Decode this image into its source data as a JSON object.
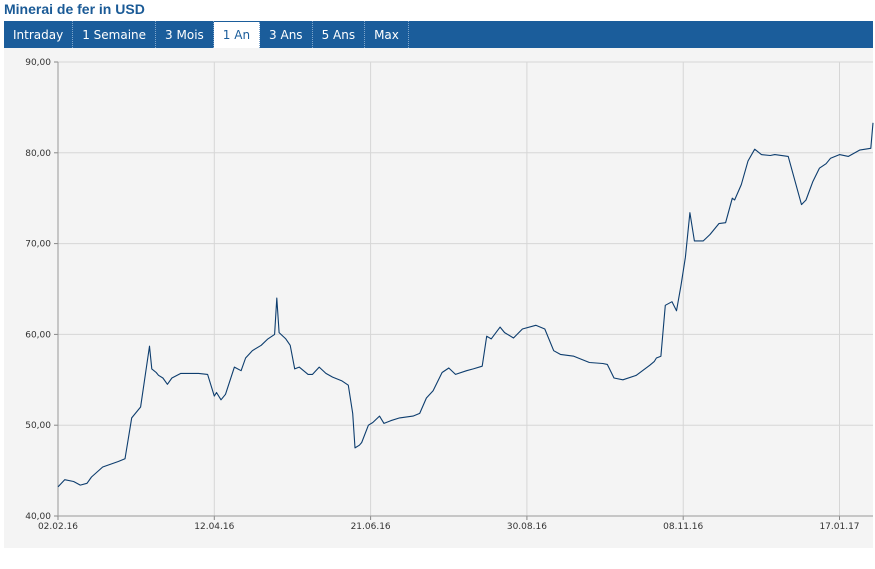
{
  "header": {
    "title": "Minerai de fer in USD"
  },
  "tabs": [
    {
      "label": "Intraday",
      "active": false
    },
    {
      "label": "1 Semaine",
      "active": false
    },
    {
      "label": "3 Mois",
      "active": false
    },
    {
      "label": "1 An",
      "active": true
    },
    {
      "label": "3 Ans",
      "active": false
    },
    {
      "label": "5 Ans",
      "active": false
    },
    {
      "label": "Max",
      "active": false
    }
  ],
  "colors": {
    "line": "#0d3d6e",
    "tabbar": "#1b5d9b",
    "title": "#1a5a96",
    "plot_bg": "#f4f4f4"
  },
  "chart_data": {
    "type": "line",
    "title": "Minerai de fer in USD",
    "xlabel": "",
    "ylabel": "",
    "ylim": [
      40,
      90
    ],
    "y_ticks": [
      40,
      50,
      60,
      70,
      80,
      90
    ],
    "y_tick_labels": [
      "40,00",
      "50,00",
      "60,00",
      "70,00",
      "80,00",
      "90,00"
    ],
    "xlim": [
      "2016-02-02",
      "2017-02-01"
    ],
    "x_ticks": [
      "2016-02-02",
      "2016-04-12",
      "2016-06-21",
      "2016-08-30",
      "2016-11-08",
      "2017-01-17"
    ],
    "x_tick_labels": [
      "02.02.16",
      "12.04.16",
      "21.06.16",
      "30.08.16",
      "08.11.16",
      "17.01.17"
    ],
    "grid": true,
    "series": [
      {
        "x": [
          "2016-02-02",
          "2016-02-05",
          "2016-02-09",
          "2016-02-12",
          "2016-02-15",
          "2016-02-17",
          "2016-02-22",
          "2016-02-29",
          "2016-03-03",
          "2016-03-06",
          "2016-03-10",
          "2016-03-14",
          "2016-03-15",
          "2016-03-17",
          "2016-03-18",
          "2016-03-20",
          "2016-03-22",
          "2016-03-24",
          "2016-03-28",
          "2016-04-01",
          "2016-04-05",
          "2016-04-09",
          "2016-04-12",
          "2016-04-13",
          "2016-04-15",
          "2016-04-17",
          "2016-04-21",
          "2016-04-24",
          "2016-04-26",
          "2016-04-29",
          "2016-05-03",
          "2016-05-06",
          "2016-05-09",
          "2016-05-10",
          "2016-05-11",
          "2016-05-14",
          "2016-05-16",
          "2016-05-18",
          "2016-05-20",
          "2016-05-24",
          "2016-05-26",
          "2016-05-29",
          "2016-06-01",
          "2016-06-04",
          "2016-06-08",
          "2016-06-11",
          "2016-06-13",
          "2016-06-14",
          "2016-06-16",
          "2016-06-17",
          "2016-06-20",
          "2016-06-22",
          "2016-06-25",
          "2016-06-27",
          "2016-06-30",
          "2016-07-04",
          "2016-07-10",
          "2016-07-13",
          "2016-07-16",
          "2016-07-19",
          "2016-07-23",
          "2016-07-26",
          "2016-07-29",
          "2016-08-03",
          "2016-08-06",
          "2016-08-10",
          "2016-08-12",
          "2016-08-14",
          "2016-08-18",
          "2016-08-20",
          "2016-08-24",
          "2016-08-28",
          "2016-09-03",
          "2016-09-05",
          "2016-09-07",
          "2016-09-11",
          "2016-09-14",
          "2016-09-20",
          "2016-09-27",
          "2016-10-03",
          "2016-10-05",
          "2016-10-08",
          "2016-10-12",
          "2016-10-18",
          "2016-10-24",
          "2016-10-26",
          "2016-10-27",
          "2016-10-29",
          "2016-10-31",
          "2016-11-03",
          "2016-11-05",
          "2016-11-07",
          "2016-11-09",
          "2016-11-11",
          "2016-11-13",
          "2016-11-17",
          "2016-11-20",
          "2016-11-24",
          "2016-11-27",
          "2016-11-30",
          "2016-12-01",
          "2016-12-04",
          "2016-12-07",
          "2016-12-10",
          "2016-12-13",
          "2016-12-17",
          "2016-12-19",
          "2016-12-25",
          "2016-12-31",
          "2017-01-02",
          "2017-01-05",
          "2017-01-08",
          "2017-01-11",
          "2017-01-13",
          "2017-01-17",
          "2017-01-21",
          "2017-01-26",
          "2017-01-31",
          "2017-02-01"
        ],
        "values": [
          43.2,
          44,
          43.8,
          43.4,
          43.6,
          44.3,
          45.4,
          46,
          46.3,
          50.8,
          52,
          58.7,
          56.2,
          55.8,
          55.5,
          55.2,
          54.5,
          55.2,
          55.7,
          55.7,
          55.7,
          55.6,
          53.2,
          53.6,
          52.8,
          53.4,
          56.4,
          56,
          57.4,
          58.2,
          58.8,
          59.5,
          60,
          64,
          60.2,
          59.5,
          58.8,
          56.2,
          56.4,
          55.6,
          55.6,
          56.4,
          55.7,
          55.3,
          54.9,
          54.4,
          51.3,
          47.5,
          47.8,
          48.1,
          50,
          50.3,
          51,
          50.2,
          50.5,
          50.8,
          51,
          51.3,
          53,
          53.8,
          55.8,
          56.3,
          55.6,
          56,
          56.2,
          56.5,
          59.8,
          59.5,
          60.8,
          60.2,
          59.6,
          60.6,
          61,
          60.8,
          60.6,
          58.2,
          57.8,
          57.6,
          56.9,
          56.8,
          56.7,
          55.2,
          55,
          55.5,
          56.6,
          57,
          57.4,
          57.6,
          63.2,
          63.6,
          62.6,
          65.4,
          68.5,
          73.4,
          70.3,
          70.3,
          71,
          72.2,
          72.3,
          75,
          74.8,
          76.5,
          79.1,
          80.4,
          79.8,
          79.7,
          79.8,
          79.6,
          74.3,
          74.8,
          76.8,
          78.3,
          78.8,
          79.4,
          79.8,
          79.6,
          80.3,
          80.5,
          83.3
        ]
      }
    ]
  }
}
